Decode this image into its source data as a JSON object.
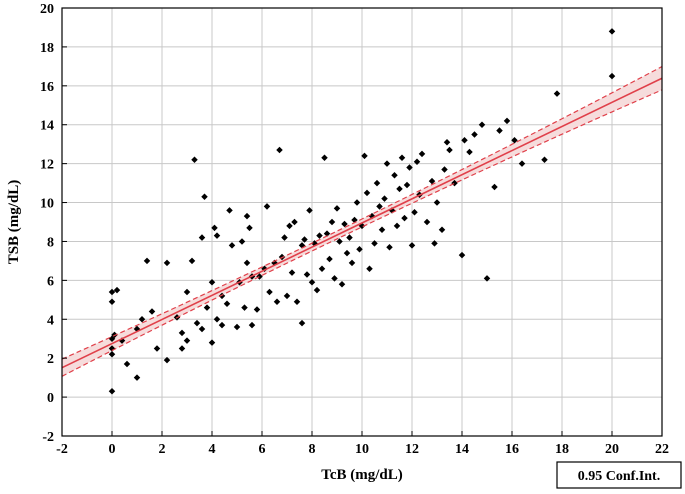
{
  "chart_data": {
    "type": "scatter",
    "xlabel": "TcB (mg/dL)",
    "ylabel": "TSB (mg/dL)",
    "xlim": [
      -2,
      22
    ],
    "ylim": [
      -2,
      20
    ],
    "x_ticks": [
      -2,
      0,
      2,
      4,
      6,
      8,
      10,
      12,
      14,
      16,
      18,
      20,
      22
    ],
    "y_ticks": [
      -2,
      0,
      2,
      4,
      6,
      8,
      10,
      12,
      14,
      16,
      18,
      20
    ],
    "grid": true,
    "legend": {
      "label": "0.95 Conf.Int.",
      "placement": "bottom-right-outside"
    },
    "colors": {
      "points": "#000000",
      "fit": "#e0404a",
      "band_fill": "#f6dcdc",
      "grid": "#c8c8c8"
    },
    "regression": {
      "slope": 0.62,
      "intercept": 2.75
    },
    "confidence_band_halfwidth": {
      "at_mean": 0.2,
      "at_extremes": 0.6,
      "mean_x": 8.5
    },
    "points": [
      [
        0.0,
        0.3
      ],
      [
        0.0,
        2.2
      ],
      [
        0.0,
        2.5
      ],
      [
        0.0,
        3.0
      ],
      [
        0.1,
        3.2
      ],
      [
        0.0,
        4.9
      ],
      [
        0.0,
        5.4
      ],
      [
        0.2,
        5.5
      ],
      [
        0.4,
        2.9
      ],
      [
        0.6,
        1.7
      ],
      [
        1.0,
        1.0
      ],
      [
        1.0,
        3.5
      ],
      [
        1.2,
        4.0
      ],
      [
        1.4,
        7.0
      ],
      [
        1.6,
        4.4
      ],
      [
        1.8,
        2.5
      ],
      [
        2.2,
        1.9
      ],
      [
        2.2,
        6.9
      ],
      [
        2.6,
        4.1
      ],
      [
        2.8,
        2.5
      ],
      [
        2.8,
        3.3
      ],
      [
        3.0,
        2.9
      ],
      [
        3.0,
        5.4
      ],
      [
        3.2,
        7.0
      ],
      [
        3.3,
        12.2
      ],
      [
        3.4,
        3.8
      ],
      [
        3.6,
        3.5
      ],
      [
        3.6,
        8.2
      ],
      [
        3.7,
        10.3
      ],
      [
        3.8,
        4.6
      ],
      [
        4.0,
        2.8
      ],
      [
        4.0,
        5.9
      ],
      [
        4.1,
        8.7
      ],
      [
        4.2,
        8.3
      ],
      [
        4.2,
        4.0
      ],
      [
        4.4,
        5.2
      ],
      [
        4.4,
        3.7
      ],
      [
        4.6,
        4.8
      ],
      [
        4.7,
        9.6
      ],
      [
        4.8,
        7.8
      ],
      [
        5.0,
        3.6
      ],
      [
        5.1,
        5.9
      ],
      [
        5.2,
        8.0
      ],
      [
        5.3,
        4.6
      ],
      [
        5.4,
        6.9
      ],
      [
        5.4,
        9.3
      ],
      [
        5.5,
        8.7
      ],
      [
        5.6,
        6.2
      ],
      [
        5.6,
        3.7
      ],
      [
        5.8,
        4.5
      ],
      [
        5.9,
        6.2
      ],
      [
        6.1,
        6.6
      ],
      [
        6.2,
        9.8
      ],
      [
        6.3,
        5.4
      ],
      [
        6.5,
        6.9
      ],
      [
        6.6,
        4.9
      ],
      [
        6.7,
        12.7
      ],
      [
        6.8,
        7.2
      ],
      [
        6.9,
        8.2
      ],
      [
        7.0,
        5.2
      ],
      [
        7.1,
        8.8
      ],
      [
        7.2,
        6.4
      ],
      [
        7.3,
        9.0
      ],
      [
        7.4,
        4.9
      ],
      [
        7.6,
        3.8
      ],
      [
        7.6,
        7.8
      ],
      [
        7.7,
        8.1
      ],
      [
        7.8,
        6.3
      ],
      [
        7.9,
        9.6
      ],
      [
        8.0,
        5.9
      ],
      [
        8.1,
        7.9
      ],
      [
        8.2,
        5.5
      ],
      [
        8.3,
        8.3
      ],
      [
        8.4,
        6.6
      ],
      [
        8.5,
        12.3
      ],
      [
        8.6,
        8.4
      ],
      [
        8.7,
        7.1
      ],
      [
        8.8,
        9.0
      ],
      [
        8.9,
        6.1
      ],
      [
        9.0,
        9.7
      ],
      [
        9.1,
        8.0
      ],
      [
        9.2,
        5.8
      ],
      [
        9.3,
        8.9
      ],
      [
        9.4,
        7.4
      ],
      [
        9.5,
        8.2
      ],
      [
        9.6,
        6.9
      ],
      [
        9.7,
        9.1
      ],
      [
        9.8,
        10.0
      ],
      [
        9.9,
        7.6
      ],
      [
        10.0,
        8.8
      ],
      [
        10.1,
        12.4
      ],
      [
        10.2,
        10.5
      ],
      [
        10.3,
        6.6
      ],
      [
        10.4,
        9.3
      ],
      [
        10.5,
        7.9
      ],
      [
        10.6,
        11.0
      ],
      [
        10.7,
        9.8
      ],
      [
        10.8,
        8.6
      ],
      [
        10.9,
        10.2
      ],
      [
        11.0,
        12.0
      ],
      [
        11.1,
        7.7
      ],
      [
        11.2,
        9.6
      ],
      [
        11.3,
        11.4
      ],
      [
        11.4,
        8.8
      ],
      [
        11.5,
        10.7
      ],
      [
        11.6,
        12.3
      ],
      [
        11.7,
        9.2
      ],
      [
        11.8,
        10.9
      ],
      [
        11.9,
        11.8
      ],
      [
        12.0,
        7.8
      ],
      [
        12.1,
        9.5
      ],
      [
        12.2,
        12.1
      ],
      [
        12.3,
        10.4
      ],
      [
        12.4,
        12.5
      ],
      [
        12.6,
        9.0
      ],
      [
        12.8,
        11.1
      ],
      [
        12.9,
        7.9
      ],
      [
        13.0,
        10.0
      ],
      [
        13.2,
        8.6
      ],
      [
        13.3,
        11.7
      ],
      [
        13.4,
        13.1
      ],
      [
        13.5,
        12.7
      ],
      [
        13.7,
        11.0
      ],
      [
        14.0,
        7.3
      ],
      [
        14.1,
        13.2
      ],
      [
        14.3,
        12.6
      ],
      [
        14.5,
        13.5
      ],
      [
        14.8,
        14.0
      ],
      [
        15.0,
        6.1
      ],
      [
        15.3,
        10.8
      ],
      [
        15.5,
        13.7
      ],
      [
        15.8,
        14.2
      ],
      [
        16.1,
        13.2
      ],
      [
        16.4,
        12.0
      ],
      [
        17.3,
        12.2
      ],
      [
        17.8,
        15.6
      ],
      [
        20.0,
        18.8
      ],
      [
        20.0,
        16.5
      ]
    ]
  }
}
